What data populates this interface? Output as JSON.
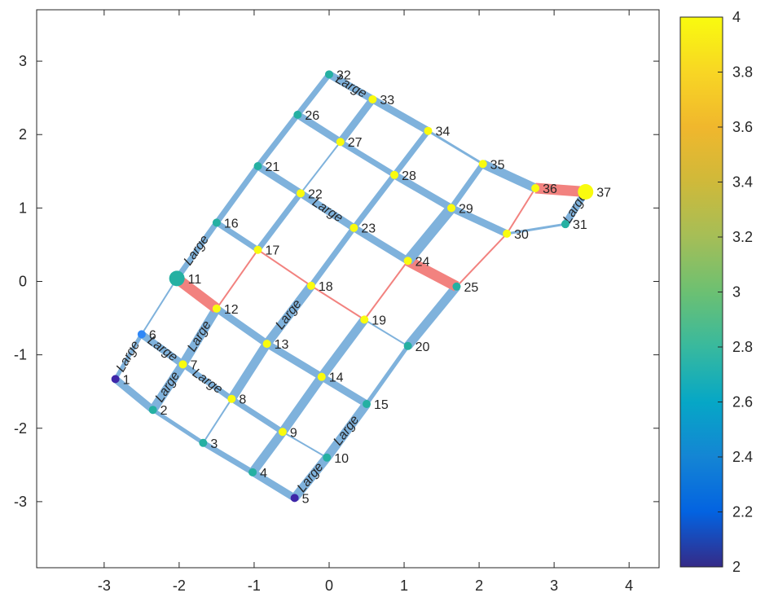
{
  "chart_data": {
    "type": "graph",
    "xlim": [
      -3.9,
      4.4
    ],
    "ylim": [
      -3.9,
      3.7
    ],
    "xticks": [
      "-3",
      "-2",
      "-1",
      "0",
      "1",
      "2",
      "3",
      "4"
    ],
    "yticks": [
      "-3",
      "-2",
      "-1",
      "0",
      "1",
      "2",
      "3"
    ],
    "colorbar": {
      "range": [
        2,
        4
      ],
      "ticks": [
        "2",
        "2.2",
        "2.4",
        "2.6",
        "2.8",
        "3",
        "3.2",
        "3.4",
        "3.6",
        "3.8",
        "4"
      ]
    },
    "node_color_values": [
      {
        "value": 2,
        "color": "#3e26a8"
      },
      {
        "value": 2.6,
        "color": "#2e87f7"
      },
      {
        "value": 3,
        "color": "#25b0a2"
      },
      {
        "value": 3.4,
        "color": "#b9bf34"
      },
      {
        "value": 4,
        "color": "#f9fb0e"
      }
    ],
    "edge_colors": {
      "normal": "#7fb2dc",
      "highlight": "#f2827f"
    },
    "edge_label_text": "Large",
    "nodes": [
      {
        "id": "1",
        "x": -2.85,
        "y": -1.33,
        "value": 2,
        "size": 9
      },
      {
        "id": "2",
        "x": -2.35,
        "y": -1.75,
        "value": 3,
        "size": 9
      },
      {
        "id": "3",
        "x": -1.68,
        "y": -2.2,
        "value": 3,
        "size": 9
      },
      {
        "id": "4",
        "x": -1.02,
        "y": -2.6,
        "value": 3,
        "size": 9
      },
      {
        "id": "5",
        "x": -0.46,
        "y": -2.95,
        "value": 2,
        "size": 9
      },
      {
        "id": "6",
        "x": -2.5,
        "y": -0.72,
        "value": 2.6,
        "size": 9
      },
      {
        "id": "7",
        "x": -1.95,
        "y": -1.13,
        "value": 4,
        "size": 9
      },
      {
        "id": "8",
        "x": -1.3,
        "y": -1.6,
        "value": 4,
        "size": 9
      },
      {
        "id": "9",
        "x": -0.62,
        "y": -2.05,
        "value": 4,
        "size": 9
      },
      {
        "id": "10",
        "x": -0.03,
        "y": -2.4,
        "value": 3,
        "size": 9
      },
      {
        "id": "11",
        "x": -2.03,
        "y": 0.04,
        "value": 3,
        "size": 18
      },
      {
        "id": "12",
        "x": -1.5,
        "y": -0.37,
        "value": 4,
        "size": 9
      },
      {
        "id": "13",
        "x": -0.83,
        "y": -0.85,
        "value": 4,
        "size": 9
      },
      {
        "id": "14",
        "x": -0.1,
        "y": -1.3,
        "value": 4,
        "size": 9
      },
      {
        "id": "15",
        "x": 0.5,
        "y": -1.67,
        "value": 3,
        "size": 9
      },
      {
        "id": "16",
        "x": -1.5,
        "y": 0.8,
        "value": 3,
        "size": 9
      },
      {
        "id": "17",
        "x": -0.95,
        "y": 0.43,
        "value": 4,
        "size": 9
      },
      {
        "id": "18",
        "x": -0.24,
        "y": -0.06,
        "value": 4,
        "size": 9
      },
      {
        "id": "19",
        "x": 0.47,
        "y": -0.52,
        "value": 4,
        "size": 9
      },
      {
        "id": "20",
        "x": 1.05,
        "y": -0.88,
        "value": 3,
        "size": 9
      },
      {
        "id": "21",
        "x": -0.95,
        "y": 1.57,
        "value": 3,
        "size": 9
      },
      {
        "id": "22",
        "x": -0.38,
        "y": 1.2,
        "value": 4,
        "size": 9
      },
      {
        "id": "23",
        "x": 0.33,
        "y": 0.73,
        "value": 4,
        "size": 9
      },
      {
        "id": "24",
        "x": 1.05,
        "y": 0.28,
        "value": 4,
        "size": 9
      },
      {
        "id": "25",
        "x": 1.7,
        "y": -0.07,
        "value": 3,
        "size": 9
      },
      {
        "id": "26",
        "x": -0.42,
        "y": 2.27,
        "value": 3,
        "size": 9
      },
      {
        "id": "27",
        "x": 0.15,
        "y": 1.9,
        "value": 4,
        "size": 9
      },
      {
        "id": "28",
        "x": 0.87,
        "y": 1.45,
        "value": 4,
        "size": 9
      },
      {
        "id": "29",
        "x": 1.63,
        "y": 1.0,
        "value": 4,
        "size": 9
      },
      {
        "id": "30",
        "x": 2.37,
        "y": 0.65,
        "value": 4,
        "size": 9
      },
      {
        "id": "31",
        "x": 3.15,
        "y": 0.78,
        "value": 3,
        "size": 9
      },
      {
        "id": "32",
        "x": 0.0,
        "y": 2.82,
        "value": 3,
        "size": 9
      },
      {
        "id": "33",
        "x": 0.58,
        "y": 2.48,
        "value": 4,
        "size": 9
      },
      {
        "id": "34",
        "x": 1.32,
        "y": 2.05,
        "value": 4,
        "size": 9
      },
      {
        "id": "35",
        "x": 2.05,
        "y": 1.6,
        "value": 4,
        "size": 9
      },
      {
        "id": "36",
        "x": 2.75,
        "y": 1.27,
        "value": 4,
        "size": 9
      },
      {
        "id": "37",
        "x": 3.42,
        "y": 1.22,
        "value": 4,
        "size": 18
      }
    ],
    "edges": [
      {
        "from": "1",
        "to": "2",
        "width": 9,
        "color": "normal"
      },
      {
        "from": "1",
        "to": "6",
        "width": 5,
        "color": "normal",
        "label": true
      },
      {
        "from": "2",
        "to": "3",
        "width": 5,
        "color": "normal"
      },
      {
        "from": "2",
        "to": "7",
        "width": 11,
        "color": "normal",
        "label": true
      },
      {
        "from": "3",
        "to": "4",
        "width": 7,
        "color": "normal"
      },
      {
        "from": "3",
        "to": "8",
        "width": 2,
        "color": "normal"
      },
      {
        "from": "4",
        "to": "5",
        "width": 9,
        "color": "normal"
      },
      {
        "from": "4",
        "to": "9",
        "width": 11,
        "color": "normal"
      },
      {
        "from": "5",
        "to": "10",
        "width": 11,
        "color": "normal",
        "label": true
      },
      {
        "from": "6",
        "to": "7",
        "width": 9,
        "color": "normal",
        "label": true
      },
      {
        "from": "6",
        "to": "11",
        "width": 2,
        "color": "normal"
      },
      {
        "from": "7",
        "to": "8",
        "width": 7,
        "color": "normal",
        "label": true
      },
      {
        "from": "7",
        "to": "12",
        "width": 11,
        "color": "normal",
        "label": true
      },
      {
        "from": "8",
        "to": "9",
        "width": 7,
        "color": "normal"
      },
      {
        "from": "8",
        "to": "13",
        "width": 11,
        "color": "normal"
      },
      {
        "from": "9",
        "to": "10",
        "width": 2,
        "color": "normal"
      },
      {
        "from": "9",
        "to": "14",
        "width": 11,
        "color": "normal"
      },
      {
        "from": "10",
        "to": "15",
        "width": 11,
        "color": "normal",
        "label": true
      },
      {
        "from": "11",
        "to": "12",
        "width": 13,
        "color": "highlight"
      },
      {
        "from": "11",
        "to": "16",
        "width": 7,
        "color": "normal",
        "label": true
      },
      {
        "from": "12",
        "to": "13",
        "width": 9,
        "color": "normal"
      },
      {
        "from": "12",
        "to": "17",
        "width": 2,
        "color": "highlight"
      },
      {
        "from": "13",
        "to": "14",
        "width": 9,
        "color": "normal"
      },
      {
        "from": "13",
        "to": "18",
        "width": 11,
        "color": "normal",
        "label": true
      },
      {
        "from": "14",
        "to": "15",
        "width": 9,
        "color": "normal"
      },
      {
        "from": "14",
        "to": "19",
        "width": 11,
        "color": "normal"
      },
      {
        "from": "15",
        "to": "20",
        "width": 5,
        "color": "normal"
      },
      {
        "from": "16",
        "to": "17",
        "width": 7,
        "color": "normal"
      },
      {
        "from": "16",
        "to": "21",
        "width": 7,
        "color": "normal"
      },
      {
        "from": "17",
        "to": "18",
        "width": 2,
        "color": "highlight"
      },
      {
        "from": "17",
        "to": "22",
        "width": 7,
        "color": "normal"
      },
      {
        "from": "18",
        "to": "19",
        "width": 2,
        "color": "highlight"
      },
      {
        "from": "18",
        "to": "23",
        "width": 7,
        "color": "normal"
      },
      {
        "from": "19",
        "to": "20",
        "width": 2,
        "color": "normal"
      },
      {
        "from": "19",
        "to": "24",
        "width": 2,
        "color": "highlight"
      },
      {
        "from": "20",
        "to": "25",
        "width": 11,
        "color": "normal"
      },
      {
        "from": "21",
        "to": "22",
        "width": 9,
        "color": "normal"
      },
      {
        "from": "21",
        "to": "26",
        "width": 7,
        "color": "normal"
      },
      {
        "from": "22",
        "to": "23",
        "width": 9,
        "color": "normal",
        "label": true
      },
      {
        "from": "22",
        "to": "27",
        "width": 2,
        "color": "normal"
      },
      {
        "from": "23",
        "to": "24",
        "width": 9,
        "color": "normal"
      },
      {
        "from": "23",
        "to": "28",
        "width": 7,
        "color": "normal"
      },
      {
        "from": "24",
        "to": "25",
        "width": 13,
        "color": "highlight"
      },
      {
        "from": "24",
        "to": "29",
        "width": 13,
        "color": "normal"
      },
      {
        "from": "25",
        "to": "30",
        "width": 2,
        "color": "highlight"
      },
      {
        "from": "26",
        "to": "27",
        "width": 9,
        "color": "normal"
      },
      {
        "from": "26",
        "to": "32",
        "width": 7,
        "color": "normal"
      },
      {
        "from": "27",
        "to": "28",
        "width": 7,
        "color": "normal"
      },
      {
        "from": "27",
        "to": "33",
        "width": 9,
        "color": "normal"
      },
      {
        "from": "28",
        "to": "29",
        "width": 9,
        "color": "normal"
      },
      {
        "from": "28",
        "to": "34",
        "width": 7,
        "color": "normal"
      },
      {
        "from": "29",
        "to": "30",
        "width": 9,
        "color": "normal"
      },
      {
        "from": "29",
        "to": "35",
        "width": 7,
        "color": "normal"
      },
      {
        "from": "30",
        "to": "36",
        "width": 2,
        "color": "highlight"
      },
      {
        "from": "31",
        "to": "30",
        "width": 3,
        "color": "normal"
      },
      {
        "from": "31",
        "to": "37",
        "width": 9,
        "color": "normal",
        "label": true
      },
      {
        "from": "32",
        "to": "33",
        "width": 9,
        "color": "normal",
        "label": true
      },
      {
        "from": "33",
        "to": "34",
        "width": 9,
        "color": "normal"
      },
      {
        "from": "34",
        "to": "35",
        "width": 3,
        "color": "normal"
      },
      {
        "from": "35",
        "to": "36",
        "width": 11,
        "color": "normal"
      },
      {
        "from": "36",
        "to": "37",
        "width": 13,
        "color": "highlight"
      }
    ]
  }
}
